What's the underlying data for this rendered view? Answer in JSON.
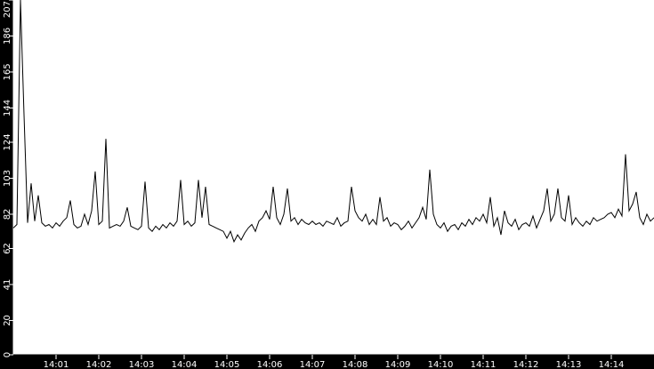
{
  "chart_data": {
    "type": "line",
    "title": "",
    "xlabel": "",
    "ylabel": "",
    "ylim": [
      0,
      207
    ],
    "xlim": [
      "14:00:00",
      "14:15:00"
    ],
    "y_ticks": [
      "0",
      "20",
      "41",
      "62",
      "82",
      "103",
      "124",
      "144",
      "165",
      "186",
      "207"
    ],
    "x_ticks": [
      "14:01",
      "14:02",
      "14:03",
      "14:04",
      "14:05",
      "14:06",
      "14:07",
      "14:08",
      "14:09",
      "14:10",
      "14:11",
      "14:12",
      "14:13",
      "14:14"
    ],
    "grid": false,
    "x_start": "14:00:00",
    "interval_seconds": 5,
    "colors": {
      "background": "#000000",
      "plot": "#ffffff",
      "line": "#000000",
      "axis_text": "#ffffff"
    },
    "series": [
      {
        "values": [
          74,
          76,
          207,
          140,
          77,
          100,
          78,
          93,
          77,
          75,
          76,
          74,
          77,
          75,
          78,
          80,
          90,
          76,
          74,
          75,
          82,
          76,
          84,
          107,
          76,
          78,
          126,
          74,
          75,
          76,
          75,
          78,
          86,
          75,
          74,
          73,
          75,
          101,
          74,
          72,
          75,
          73,
          76,
          74,
          77,
          75,
          78,
          102,
          76,
          78,
          75,
          77,
          102,
          80,
          98,
          76,
          75,
          74,
          73,
          72,
          68,
          72,
          66,
          70,
          67,
          71,
          74,
          76,
          72,
          78,
          80,
          84,
          79,
          98,
          80,
          76,
          82,
          97,
          78,
          80,
          76,
          79,
          77,
          76,
          78,
          76,
          77,
          75,
          78,
          77,
          76,
          80,
          75,
          77,
          78,
          98,
          84,
          80,
          78,
          82,
          76,
          79,
          76,
          92,
          78,
          80,
          75,
          77,
          76,
          73,
          75,
          78,
          74,
          77,
          80,
          86,
          79,
          108,
          82,
          76,
          74,
          77,
          72,
          75,
          76,
          73,
          77,
          75,
          79,
          76,
          80,
          78,
          82,
          77,
          92,
          75,
          80,
          70,
          84,
          77,
          75,
          79,
          73,
          76,
          77,
          75,
          81,
          74,
          79,
          84,
          97,
          78,
          82,
          97,
          80,
          78,
          93,
          76,
          80,
          77,
          75,
          78,
          76,
          80,
          78,
          79,
          80,
          82,
          83,
          80,
          85,
          81,
          117,
          84,
          88,
          95,
          80,
          76,
          82,
          78,
          80
        ]
      }
    ]
  }
}
